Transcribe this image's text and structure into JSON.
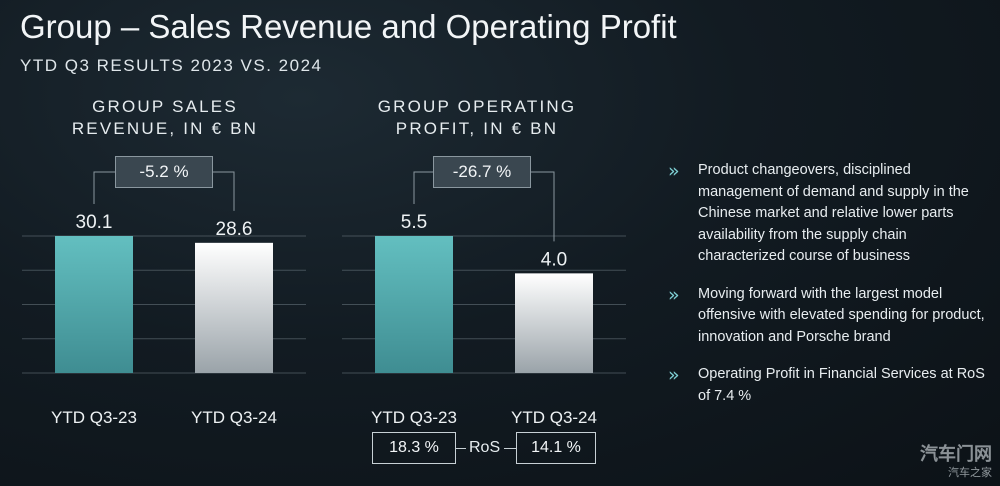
{
  "header": {
    "title": "Group – Sales Revenue and Operating Profit",
    "subtitle": "YTD Q3 RESULTS 2023 VS. 2024"
  },
  "chart_data": [
    {
      "type": "bar",
      "title_line1": "GROUP SALES",
      "title_line2": "REVENUE, IN € BN",
      "categories": [
        "YTD Q3-23",
        "YTD Q3-24"
      ],
      "values": [
        30.1,
        28.6
      ],
      "value_labels": [
        "30.1",
        "28.6"
      ],
      "delta_label": "-5.2 %",
      "bar_colors": [
        "#5cb6b8",
        "#ffffff"
      ],
      "ylim": [
        0,
        30.1
      ],
      "grid": true
    },
    {
      "type": "bar",
      "title_line1": "GROUP OPERATING",
      "title_line2": "PROFIT, IN € BN",
      "categories": [
        "YTD Q3-23",
        "YTD Q3-24"
      ],
      "values": [
        5.5,
        4.0
      ],
      "value_labels": [
        "5.5",
        "4.0"
      ],
      "delta_label": "-26.7 %",
      "bar_colors": [
        "#5cb6b8",
        "#ffffff"
      ],
      "ylim": [
        0,
        5.5
      ],
      "grid": true,
      "ros": {
        "label": "RoS",
        "values": [
          "18.3 %",
          "14.1 %"
        ]
      }
    }
  ],
  "bullets": [
    "Product changeovers, disciplined management of demand and supply in the Chinese market and relative lower parts availability from the supply chain characterized course of business",
    "Moving forward with the largest model offensive with elevated spending for product, innovation and Porsche brand",
    "Operating Profit in Financial Services at RoS of 7.4 %"
  ],
  "watermark": {
    "brand": "汽车门网",
    "sub": "汽车之家"
  },
  "colors": {
    "accent": "#5cb6b8",
    "chevron": "#7fd0d4",
    "background": "#121b22"
  }
}
